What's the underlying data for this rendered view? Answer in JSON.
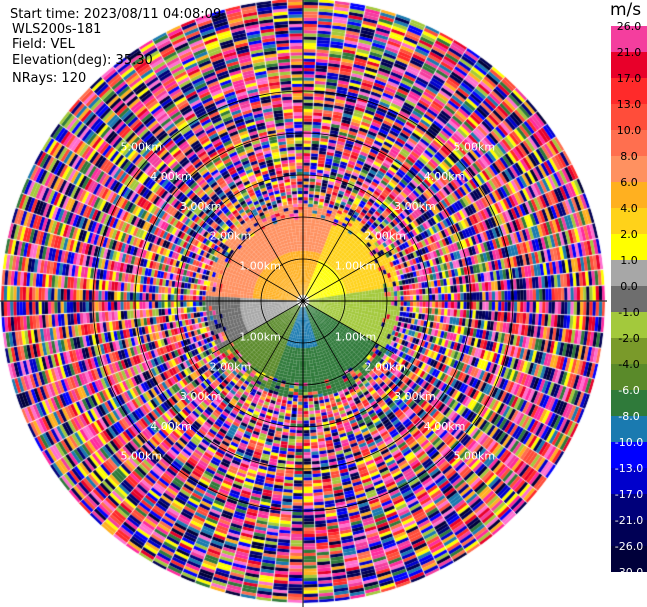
{
  "header": {
    "start_time": "Start time: 2023/08/11 04:08:09",
    "instrument": "WLS200s-181",
    "field": "Field: VEL",
    "elevation": "Elevation(deg): 35.30",
    "nrays": "NRays: 120"
  },
  "rings": {
    "labels": [
      "1.00km",
      "2.00km",
      "3.00km",
      "4.00km",
      "5.00km"
    ]
  },
  "colorbar": {
    "unit": "m/s",
    "ticks": [
      "26.0",
      "21.0",
      "17.0",
      "13.0",
      "10.0",
      "8.0",
      "6.0",
      "4.0",
      "2.0",
      "1.0",
      "0.0",
      "-1.0",
      "-2.0",
      "-4.0",
      "-6.0",
      "-8.0",
      "-10.0",
      "-13.0",
      "-17.0",
      "-21.0",
      "-26.0",
      "-30.0"
    ],
    "colors": [
      "#f43e9e",
      "#e8002a",
      "#ff2a2a",
      "#ff4d3a",
      "#ff6f4f",
      "#ff9160",
      "#ffb020",
      "#ffd21a",
      "#ffff00",
      "#a7a7a7",
      "#6e6e6e",
      "#a3c93c",
      "#7a9a2a",
      "#5a8a2a",
      "#2f7a3a",
      "#1a7ab0",
      "#0000ff",
      "#0000cc",
      "#00007a",
      "#000055",
      "#00003a"
    ],
    "tick_text_colors": [
      "#000",
      "#000",
      "#000",
      "#000",
      "#000",
      "#000",
      "#000",
      "#000",
      "#000",
      "#000",
      "#000",
      "#000",
      "#000",
      "#000",
      "#fff",
      "#fff",
      "#fff",
      "#fff",
      "#fff",
      "#fff",
      "#fff",
      "#fff"
    ]
  }
}
